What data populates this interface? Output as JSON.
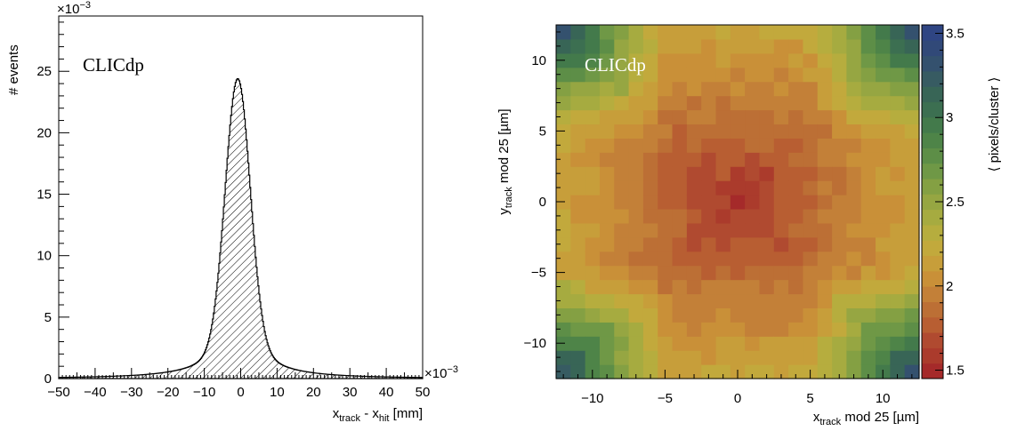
{
  "chart_data": [
    {
      "type": "histogram",
      "ylabel": "# events",
      "xlabel": {
        "main": "x",
        "sub1": "track",
        "mid": " - x",
        "sub2": "hit",
        "unit": " [mm]"
      },
      "label": "CLICdp",
      "xlim": [
        -0.05,
        0.05
      ],
      "ylim": [
        0,
        0.0295
      ],
      "x_multiplier": "×10",
      "x_multiplier_exp": "−3",
      "y_multiplier": "×10",
      "y_multiplier_exp": "−3",
      "x_ticks": [
        "−50",
        "−40",
        "−30",
        "−20",
        "−10",
        "0",
        "10",
        "20",
        "30",
        "40",
        "50"
      ],
      "y_ticks": [
        "0",
        "5",
        "10",
        "15",
        "20",
        "25"
      ],
      "peak": {
        "mean": -0.0008,
        "sigma_core": 0.0034,
        "height": 0.0244
      },
      "fill": "hatched"
    },
    {
      "type": "heatmap",
      "label": "CLICdp",
      "xlabel": {
        "main": "x",
        "sub": "track",
        "rest": " mod 25 [µm]"
      },
      "ylabel": {
        "main": "y",
        "sub": "track",
        "rest": " mod 25 [µm]"
      },
      "zlabel": "⟨ pixels/cluster ⟩",
      "xlim": [
        -12.5,
        12.5
      ],
      "ylim": [
        -12.5,
        12.5
      ],
      "zlim": [
        1.45,
        3.55
      ],
      "bins": 25,
      "x_ticks": [
        "−10",
        "−5",
        "0",
        "5",
        "10"
      ],
      "y_ticks": [
        "−10",
        "−5",
        "0",
        "5",
        "10"
      ],
      "z_ticks": [
        "1.5",
        "2",
        "2.5",
        "3",
        "3.5"
      ],
      "model": {
        "centre_value": 1.55,
        "edge_value": 2.18,
        "corner_value": 3.45
      },
      "palette": [
        "#a52a2a",
        "#ab3b2c",
        "#b04a30",
        "#b85e32",
        "#bc6f35",
        "#c38038",
        "#c99038",
        "#c79e3a",
        "#c2a93c",
        "#b6ad3e",
        "#a6ab40",
        "#96a642",
        "#84a043",
        "#6f9846",
        "#5d8e47",
        "#4e8448",
        "#437a4b",
        "#3c6f51",
        "#386556",
        "#375b62",
        "#34516e",
        "#314978",
        "#2f4583"
      ]
    }
  ]
}
